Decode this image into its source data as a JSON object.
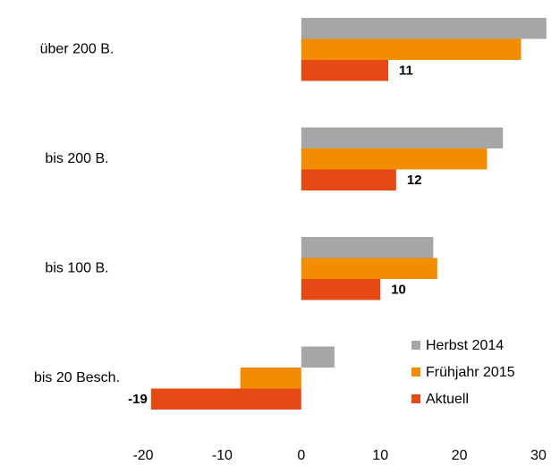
{
  "chart_data": {
    "type": "hbar",
    "categories": [
      "über 200 B.",
      "bis 200 B.",
      "bis 100 B.",
      "bis 20 Besch."
    ],
    "series": [
      {
        "name": "Herbst 2014",
        "color": "#a6a6a6",
        "values": [
          31,
          25.5,
          16.7,
          4.2
        ]
      },
      {
        "name": "Frühjahr 2015",
        "color": "#f28c00",
        "values": [
          27.8,
          23.5,
          17.2,
          -7.7
        ]
      },
      {
        "name": "Aktuell",
        "color": "#e64a14",
        "values": [
          11,
          12,
          10,
          -19
        ],
        "show_labels": true
      }
    ],
    "xlim": [
      -20,
      30
    ],
    "xticks": [
      -20,
      -10,
      0,
      10,
      20,
      30
    ],
    "grid": false,
    "legend": "lower right"
  }
}
